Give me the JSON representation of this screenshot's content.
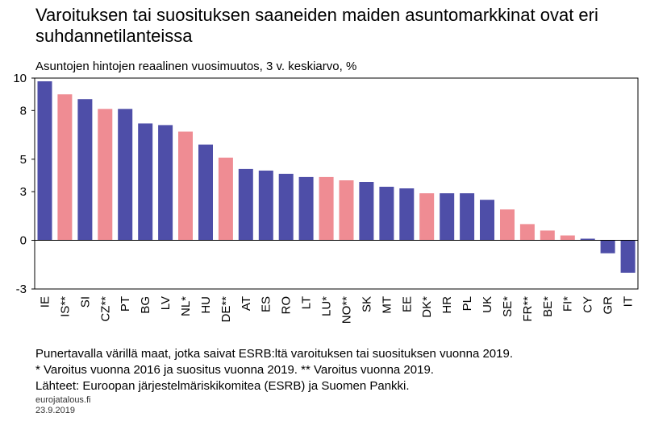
{
  "title": "Varoituksen tai suosituksen saaneiden maiden asuntomarkkinat ovat eri suhdannetilanteissa",
  "subtitle": "Asuntojen hintojen reaalinen vuosimuutos, 3 v. keskiarvo, %",
  "notes": [
    "Punertavalla värillä maat, jotka saivat ESRB:ltä varoituksen tai suosituksen vuonna 2019.",
    "* Varoitus vuonna 2016 ja suositus vuonna 2019. ** Varoitus vuonna 2019.",
    "Lähteet: Euroopan järjestelmäriskikomitea (ESRB) ja Suomen Pankki."
  ],
  "source_site": "eurojatalous.fi",
  "date": "23.9.2019",
  "colors": {
    "default": "#4e4ea8",
    "flagged": "#ef8c93"
  },
  "chart_data": {
    "type": "bar",
    "ylim": [
      -3,
      10
    ],
    "yticks": [
      -3,
      0,
      3,
      5,
      8,
      10
    ],
    "categories": [
      "IE",
      "IS**",
      "SI",
      "CZ**",
      "PT",
      "BG",
      "LV",
      "NL*",
      "HU",
      "DE**",
      "AT",
      "ES",
      "RO",
      "LT",
      "LU*",
      "NO**",
      "SK",
      "MT",
      "EE",
      "DK*",
      "HR",
      "PL",
      "UK",
      "SE*",
      "FR**",
      "BE*",
      "FI*",
      "CY",
      "GR",
      "IT"
    ],
    "values": [
      9.8,
      9.0,
      8.7,
      8.1,
      8.1,
      7.2,
      7.1,
      6.7,
      5.9,
      5.1,
      4.4,
      4.3,
      4.1,
      3.9,
      3.9,
      3.7,
      3.6,
      3.3,
      3.2,
      2.9,
      2.9,
      2.9,
      2.5,
      1.9,
      1.0,
      0.6,
      0.3,
      0.1,
      -0.8,
      -2.0
    ],
    "flagged": [
      false,
      true,
      false,
      true,
      false,
      false,
      false,
      true,
      false,
      true,
      false,
      false,
      false,
      false,
      true,
      true,
      false,
      false,
      false,
      true,
      false,
      false,
      false,
      true,
      true,
      true,
      true,
      false,
      false,
      false
    ]
  }
}
